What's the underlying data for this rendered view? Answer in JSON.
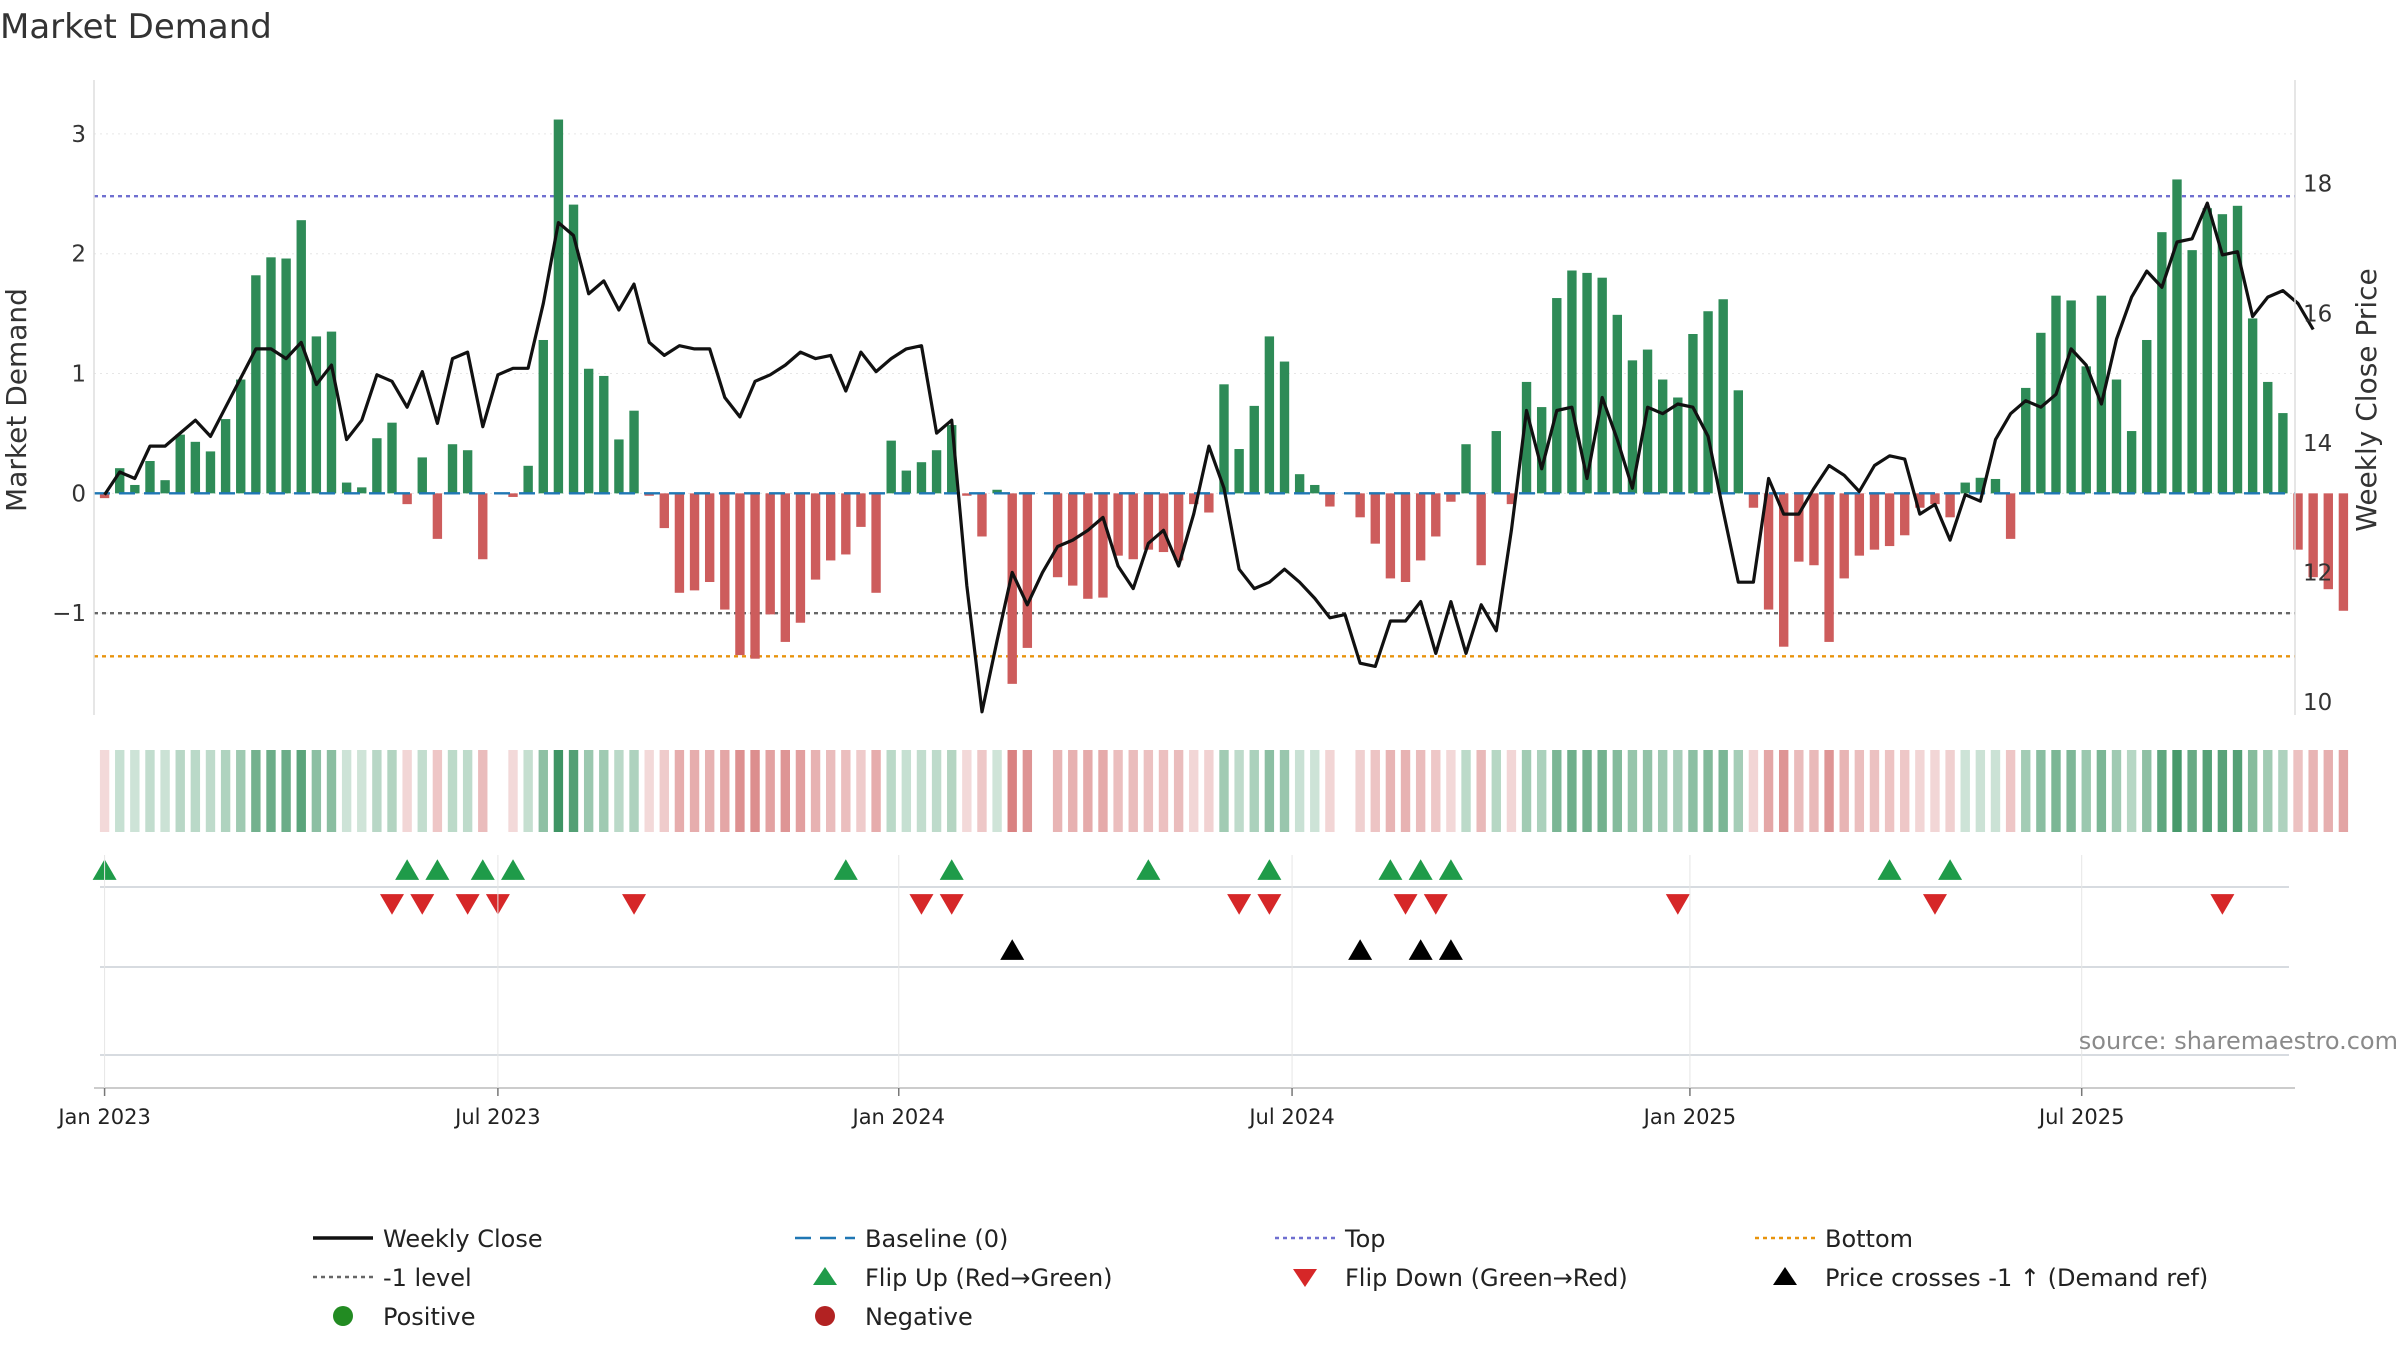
{
  "chart_data": {
    "type": "bar",
    "title": "Market Demand",
    "ylabel": "Market Demand",
    "ylabel_right": "Weekly Close Price",
    "source": "source: sharemaestro.com",
    "ylim": [
      -1.85,
      3.45
    ],
    "y_ticks": [
      {
        "v": 3,
        "label": "3"
      },
      {
        "v": 2,
        "label": "2"
      },
      {
        "v": 1,
        "label": "1"
      },
      {
        "v": 0,
        "label": "0"
      },
      {
        "v": -1,
        "label": "−1"
      }
    ],
    "ylim_right": [
      9.8,
      19.6
    ],
    "y_ticks_right": [
      {
        "v": 18,
        "label": "18"
      },
      {
        "v": 16,
        "label": "16"
      },
      {
        "v": 14,
        "label": "14"
      },
      {
        "v": 12,
        "label": "12"
      },
      {
        "v": 10,
        "label": "10"
      }
    ],
    "x_range": [
      -0.7,
      144.8
    ],
    "x_ticks": [
      {
        "week": 0,
        "label": "Jan 2023"
      },
      {
        "week": 26,
        "label": "Jul 2023"
      },
      {
        "week": 52.5,
        "label": "Jan 2024"
      },
      {
        "week": 78.5,
        "label": "Jul 2024"
      },
      {
        "week": 104.8,
        "label": "Jan 2025"
      },
      {
        "week": 130.7,
        "label": "Jul 2025"
      }
    ],
    "reference_lines": {
      "top": 2.48,
      "minus_one": -1,
      "bottom": -1.36,
      "baseline": 0
    },
    "demand": [
      -0.04,
      0.21,
      0.07,
      0.27,
      0.11,
      0.49,
      0.43,
      0.35,
      0.62,
      0.95,
      1.82,
      1.97,
      1.96,
      2.28,
      1.31,
      1.35,
      0.09,
      0.05,
      0.46,
      0.59,
      -0.09,
      0.3,
      -0.38,
      0.41,
      0.36,
      -0.55,
      0,
      -0.03,
      0.23,
      1.28,
      3.12,
      2.41,
      1.04,
      0.98,
      0.45,
      0.69,
      -0.02,
      -0.29,
      -0.83,
      -0.81,
      -0.74,
      -0.97,
      -1.35,
      -1.38,
      -1.01,
      -1.24,
      -1.08,
      -0.72,
      -0.56,
      -0.51,
      -0.28,
      -0.83,
      0.44,
      0.19,
      0.26,
      0.36,
      0.57,
      -0.02,
      -0.36,
      0.03,
      -1.59,
      -1.29,
      0,
      -0.7,
      -0.77,
      -0.88,
      -0.87,
      -0.52,
      -0.55,
      -0.47,
      -0.49,
      -0.56,
      -0.09,
      -0.16,
      0.91,
      0.37,
      0.73,
      1.31,
      1.1,
      0.16,
      0.07,
      -0.11,
      0,
      -0.2,
      -0.42,
      -0.71,
      -0.74,
      -0.56,
      -0.36,
      -0.07,
      0.41,
      -0.6,
      0.52,
      -0.09,
      0.93,
      0.72,
      1.63,
      1.86,
      1.84,
      1.8,
      1.49,
      1.11,
      1.2,
      0.95,
      0.8,
      1.33,
      1.52,
      1.62,
      0.86,
      -0.12,
      -0.97,
      -1.28,
      -0.57,
      -0.6,
      -1.24,
      -0.71,
      -0.52,
      -0.47,
      -0.44,
      -0.35,
      -0.12,
      -0.09,
      -0.2,
      0.09,
      0.13,
      0.12,
      -0.38,
      0.88,
      1.34,
      1.65,
      1.61,
      1.06,
      1.65,
      0.95,
      0.52,
      1.28,
      2.18,
      2.62,
      2.03,
      2.38,
      2.33,
      2.4,
      1.46,
      0.93,
      0.67,
      -0.47,
      -0.7,
      -0.8,
      -0.98
    ],
    "weekly_close": [
      13.2,
      13.55,
      13.45,
      13.95,
      13.95,
      14.15,
      14.35,
      14.1,
      14.55,
      15,
      15.45,
      15.45,
      15.3,
      15.55,
      14.9,
      15.2,
      14.05,
      14.35,
      15.05,
      14.95,
      14.55,
      15.1,
      14.3,
      15.3,
      15.4,
      14.25,
      15.05,
      15.15,
      15.15,
      16.15,
      17.4,
      17.2,
      16.3,
      16.5,
      16.05,
      16.45,
      15.55,
      15.35,
      15.5,
      15.45,
      15.45,
      14.7,
      14.4,
      14.95,
      15.05,
      15.2,
      15.4,
      15.3,
      15.35,
      14.8,
      15.4,
      15.1,
      15.3,
      15.45,
      15.5,
      14.15,
      14.35,
      11.8,
      9.85,
      10.95,
      12,
      11.5,
      12,
      12.4,
      12.5,
      12.65,
      12.85,
      12.1,
      11.75,
      12.45,
      12.65,
      12.1,
      12.9,
      13.95,
      13.3,
      12.05,
      11.75,
      11.85,
      12.05,
      11.85,
      11.6,
      11.3,
      11.35,
      10.6,
      10.55,
      11.25,
      11.25,
      11.55,
      10.75,
      11.55,
      10.75,
      11.5,
      11.1,
      12.65,
      14.5,
      13.6,
      14.5,
      14.55,
      13.45,
      14.7,
      14.05,
      13.3,
      14.55,
      14.45,
      14.6,
      14.55,
      14.1,
      12.95,
      11.85,
      11.85,
      13.45,
      12.9,
      12.9,
      13.3,
      13.65,
      13.5,
      13.25,
      13.65,
      13.8,
      13.75,
      12.9,
      13.05,
      12.5,
      13.2,
      13.1,
      14.05,
      14.45,
      14.65,
      14.55,
      14.75,
      15.45,
      15.2,
      14.6,
      15.6,
      16.25,
      16.65,
      16.4,
      17.1,
      17.15,
      17.7,
      16.9,
      16.95,
      15.95,
      16.25,
      16.35,
      16.15,
      15.75
    ],
    "flip_up_weeks": [
      0,
      20,
      22,
      25,
      27,
      49,
      56,
      69,
      77,
      85,
      87,
      89,
      118,
      122
    ],
    "flip_down_weeks": [
      19,
      21,
      24,
      26,
      35,
      54,
      56,
      75,
      77,
      86,
      88,
      104,
      121,
      140
    ],
    "price_cross_weeks": [
      60,
      83,
      87,
      89
    ],
    "legend": [
      {
        "key": "weekly_close",
        "label": "Weekly Close",
        "color": "#111111"
      },
      {
        "key": "baseline",
        "label": "Baseline (0)",
        "color": "#1f77b4"
      },
      {
        "key": "top",
        "label": "Top",
        "color": "#6f6fd0"
      },
      {
        "key": "bottom",
        "label": "Bottom",
        "color": "#e8930c"
      },
      {
        "key": "minus_one",
        "label": "-1 level",
        "color": "#666666"
      },
      {
        "key": "flip_up",
        "label": "Flip Up (Red→Green)",
        "color": "#1f9b49"
      },
      {
        "key": "flip_down",
        "label": "Flip Down (Green→Red)",
        "color": "#d62728"
      },
      {
        "key": "price_cross",
        "label": "Price crosses -1 ↑ (Demand ref)",
        "color": "#000000"
      },
      {
        "key": "positive",
        "label": "Positive",
        "color": "#228b22"
      },
      {
        "key": "negative",
        "label": "Negative",
        "color": "#b22222"
      }
    ],
    "colors": {
      "positive_bar": "#2e8b57",
      "negative_bar": "#cd5c5c",
      "line": "#111111",
      "baseline": "#1f77b4"
    }
  }
}
